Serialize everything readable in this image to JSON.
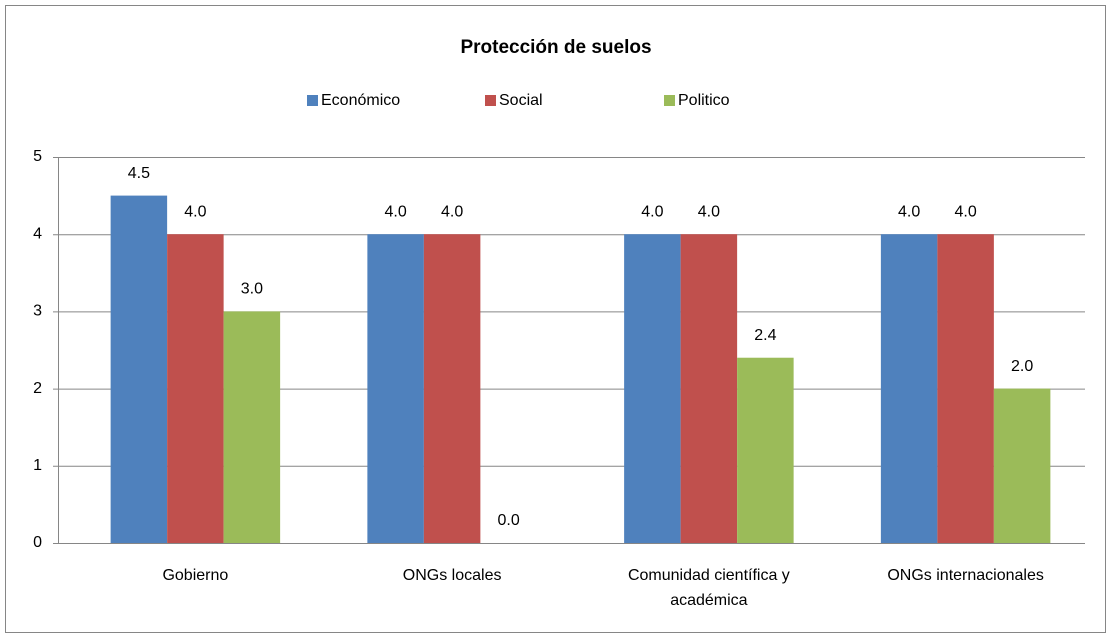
{
  "chart_data": {
    "type": "bar",
    "title": "Protección de suelos",
    "categories": [
      "Gobierno",
      "ONGs locales",
      "Comunidad científica y académica",
      "ONGs internacionales"
    ],
    "series": [
      {
        "name": "Económico",
        "color": "#4f81bd",
        "values": [
          4.5,
          4,
          4,
          4
        ],
        "value_labels": [
          "4.5",
          "4.0",
          "4.0",
          "4.0"
        ]
      },
      {
        "name": "Social",
        "color": "#c0504d",
        "values": [
          4,
          4,
          4,
          4
        ],
        "value_labels": [
          "4.0",
          "4.0",
          "4.0",
          "4.0"
        ]
      },
      {
        "name": "Politico",
        "color": "#9bbb59",
        "values": [
          3,
          0,
          2.4,
          2
        ],
        "value_labels": [
          "3.0",
          "0.0",
          "2.4",
          "2.0"
        ]
      }
    ],
    "ylim": [
      0,
      5
    ],
    "yticks": [
      0,
      1,
      2,
      3,
      4,
      5
    ],
    "grid": true,
    "legend": "top"
  }
}
